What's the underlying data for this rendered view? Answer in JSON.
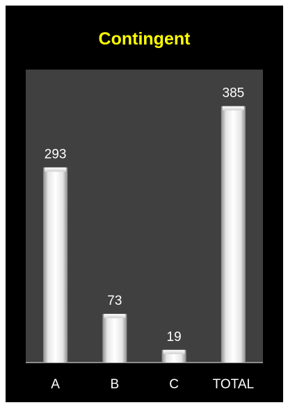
{
  "chart_data": {
    "type": "bar",
    "title": "Contingent",
    "categories": [
      "A",
      "B",
      "C",
      "TOTAL"
    ],
    "values": [
      293,
      73,
      19,
      385
    ],
    "xlabel": "",
    "ylabel": "",
    "ylim": [
      0,
      440
    ],
    "grid": false,
    "legend": "none"
  },
  "colors": {
    "frame_background": "#000000",
    "plot_background": "#404040",
    "title_color": "#ffff00",
    "bar_light": "#ffffff",
    "bar_shade": "#a6a6a6",
    "text_color": "#ffffff"
  }
}
